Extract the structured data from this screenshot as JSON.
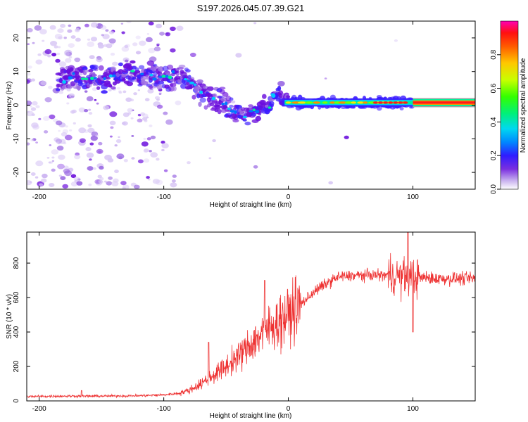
{
  "title": "S197.2026.045.07.39.G21",
  "chart_data": [
    {
      "type": "heatmap",
      "name": "spectrogram",
      "xlabel": "Height of straight line (km)",
      "ylabel": "Frequency (Hz)",
      "xlim": [
        -210,
        150
      ],
      "ylim": [
        -25,
        25
      ],
      "xticks": [
        -200,
        -100,
        0,
        100
      ],
      "yticks": [
        -20,
        -10,
        0,
        10,
        20
      ],
      "colorbar": {
        "label": "Normalized spectral amplitude",
        "range": [
          0.0,
          1.0
        ],
        "ticks": [
          0.0,
          0.2,
          0.4,
          0.6,
          0.8
        ],
        "tick_labels": [
          "0.0",
          "0.2",
          "0.4",
          "0.6",
          "0.8"
        ]
      },
      "ridge": {
        "x": [
          -182,
          -170,
          -160,
          -145,
          -130,
          -115,
          -100,
          -90,
          -80,
          -70,
          -60,
          -50,
          -42,
          -35,
          -25,
          -15,
          -12,
          -5,
          0,
          20,
          50,
          80,
          100,
          150
        ],
        "y": [
          7,
          9,
          8,
          8,
          10,
          9,
          8,
          9,
          7,
          4,
          2,
          0,
          -2,
          -3,
          -1,
          0,
          3,
          2,
          1,
          0.5,
          0.8,
          0.7,
          0.8,
          0.8
        ]
      },
      "colors": [
        "#ffffff",
        "#d9c8f5",
        "#9b6be3",
        "#6a0ddc",
        "#3b1cff",
        "#0078ff",
        "#00c8ff",
        "#00f09a",
        "#7aff00",
        "#ffe400",
        "#ff8c00",
        "#ff1a1a",
        "#ff00b4"
      ]
    },
    {
      "type": "line",
      "name": "snr",
      "xlabel": "Height of straight line (km)",
      "ylabel": "SNR (10 * v/v)",
      "xlim": [
        -210,
        150
      ],
      "ylim": [
        0,
        980
      ],
      "xticks": [
        -200,
        -100,
        0,
        100
      ],
      "yticks": [
        0,
        200,
        400,
        600,
        800
      ],
      "color": "#ee3333",
      "trend": {
        "x": [
          -210,
          -180,
          -150,
          -120,
          -100,
          -90,
          -80,
          -70,
          -60,
          -50,
          -40,
          -30,
          -20,
          -10,
          0,
          10,
          20,
          30,
          40,
          60,
          80,
          100,
          120,
          150
        ],
        "y": [
          25,
          28,
          28,
          30,
          35,
          42,
          60,
          100,
          150,
          200,
          260,
          330,
          400,
          450,
          500,
          560,
          630,
          680,
          720,
          730,
          730,
          720,
          710,
          710
        ]
      },
      "features": [
        {
          "x": -166,
          "y": 60
        },
        {
          "x": -64,
          "y": 340
        },
        {
          "x": -19,
          "y": 700
        },
        {
          "x": 96,
          "y": 980
        },
        {
          "x": 100,
          "y": 400
        }
      ]
    }
  ]
}
